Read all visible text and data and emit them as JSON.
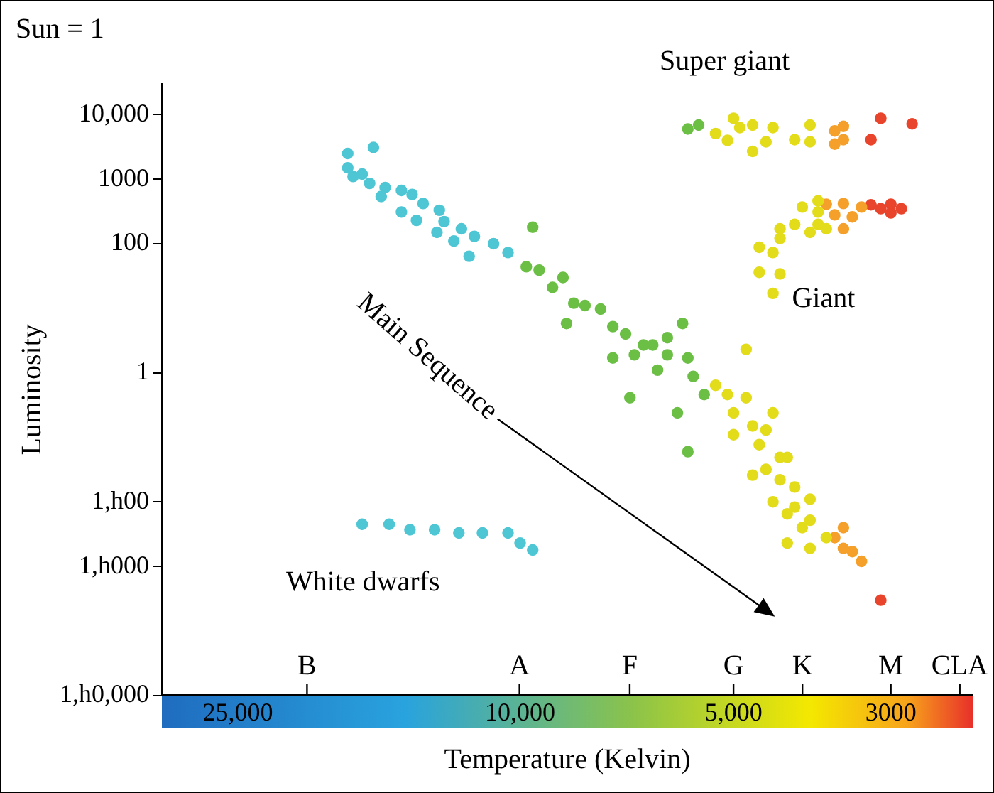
{
  "chart_data": {
    "type": "scatter",
    "xlabel": "Temperature (Kelvin)",
    "ylabel": "Luminosity",
    "log": "xy",
    "marker": "circle",
    "grid": false,
    "legend": false,
    "xlim": [
      32000,
      2300
    ],
    "xticks": [
      {
        "value": 25000,
        "label": "25,000"
      },
      {
        "value": 10000,
        "label": "10,000"
      },
      {
        "value": 5000,
        "label": "5,000"
      },
      3000
    ],
    "ylim": [
      1e-05,
      30000
    ],
    "yticks": [
      {
        "value": 10000,
        "label": "10,000"
      },
      1000,
      100,
      1,
      {
        "value": 0.01,
        "label": "1,h00"
      },
      {
        "value": 0.001,
        "label": "1,h000"
      },
      {
        "value": 1e-05,
        "label": "1,h0,000"
      }
    ],
    "annotations": [
      "Sun = 1",
      "Super giant",
      "Giant",
      "Main Sequence",
      "White dwarfs",
      "B",
      "A",
      "F",
      "G",
      "K",
      "M",
      "CLA"
    ],
    "series": [
      {
        "color": "#4ec6d4",
        "x": [
          17500,
          16100,
          17500,
          16700,
          17200,
          16300,
          15500,
          14700,
          15700,
          14200,
          13700,
          14700,
          13000,
          14000,
          12800,
          12100,
          13100,
          11600,
          12400,
          10900,
          11800,
          10400,
          16700,
          15300,
          14300,
          13200,
          12200,
          11300,
          10400,
          10000,
          9600
        ],
        "values": [
          2500,
          3100,
          1500,
          1200,
          1100,
          860,
          740,
          670,
          540,
          580,
          420,
          310,
          330,
          230,
          220,
          170,
          150,
          130,
          110,
          100,
          64,
          73,
          0.0045,
          0.0045,
          0.0037,
          0.0037,
          0.0033,
          0.0033,
          0.0033,
          0.0023,
          0.0018
        ]
      },
      {
        "color": "#6cbf45",
        "x": [
          9600,
          9800,
          9400,
          9000,
          8700,
          8400,
          8100,
          7700,
          8600,
          7400,
          7100,
          6700,
          6500,
          6200,
          5900,
          6200,
          6900,
          7400,
          5800,
          5700,
          5500,
          5800,
          7000,
          6400,
          6000,
          5800,
          5600
        ],
        "values": [
          180,
          44,
          39,
          21,
          30,
          12,
          11,
          9.7,
          5.8,
          5.2,
          4,
          2.7,
          2.7,
          3.5,
          5.8,
          1.9,
          1.9,
          1.7,
          1.7,
          0.88,
          0.46,
          0.06,
          0.41,
          1.1,
          0.24,
          6000,
          6900
        ]
      },
      {
        "color": "#e3dc1a",
        "x": [
          5300,
          5000,
          5100,
          4900,
          4700,
          4700,
          4500,
          4400,
          4100,
          3900,
          3900,
          5300,
          5100,
          5000,
          4800,
          5000,
          4700,
          4600,
          4500,
          4400,
          4300,
          4500,
          4300,
          4100,
          4700,
          4200,
          4400,
          4100,
          3900,
          4200,
          3900,
          4000,
          3700,
          3900,
          4200,
          4800,
          4000,
          3800,
          3800,
          4100,
          4300,
          4300,
          4600,
          4400,
          4600,
          4300,
          4400,
          3900,
          3800,
          3700
        ],
        "values": [
          5100,
          8800,
          4000,
          6300,
          6900,
          2700,
          3800,
          6300,
          4100,
          3800,
          6900,
          0.64,
          0.46,
          0.24,
          0.41,
          0.11,
          0.15,
          0.077,
          0.13,
          0.24,
          0.049,
          0.032,
          0.022,
          0.017,
          0.026,
          0.049,
          0.01,
          0.0083,
          0.011,
          0.0065,
          0.0052,
          0.004,
          0.0028,
          0.0019,
          0.0023,
          2.3,
          370,
          460,
          310,
          200,
          170,
          120,
          88,
          73,
          36,
          34,
          17,
          150,
          200,
          170
        ]
      },
      {
        "color": "#f5a02a",
        "x": [
          3600,
          3500,
          3600,
          3500,
          3700,
          3500,
          3600,
          3400,
          3500,
          3300,
          3500,
          3500,
          3400,
          3300,
          3600
        ],
        "values": [
          5600,
          6600,
          3500,
          4100,
          410,
          420,
          280,
          260,
          170,
          370,
          0.004,
          0.0019,
          0.0017,
          0.0012,
          0.0028
        ]
      },
      {
        "color": "#e8452c",
        "x": [
          3200,
          3100,
          2800,
          3200,
          3100,
          3000,
          3000,
          2900,
          3100
        ],
        "values": [
          4100,
          8800,
          7200,
          400,
          350,
          410,
          300,
          350,
          0.0003
        ]
      }
    ]
  }
}
